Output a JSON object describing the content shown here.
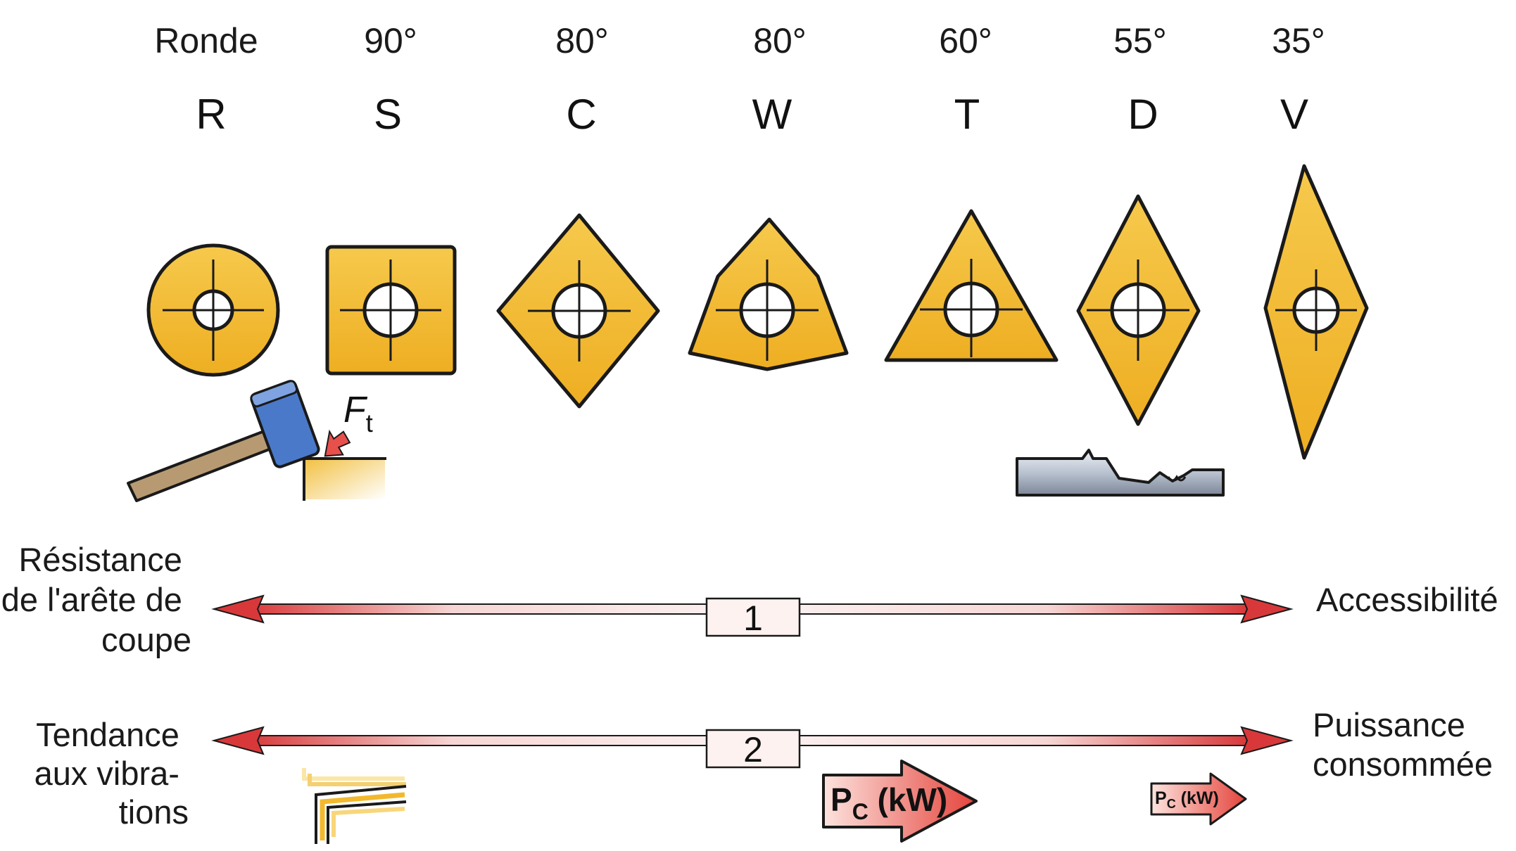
{
  "colors": {
    "insert_fill": "#f2b92e",
    "insert_light": "#f8d67a",
    "outline": "#1a1a1a",
    "arrow_red": "#d9383a",
    "hammer_blue": "#4a79c9",
    "pc_arrow": "#e8504c"
  },
  "inserts": [
    {
      "angle": "Ronde",
      "code": "R",
      "shape": "round"
    },
    {
      "angle": "90°",
      "code": "S",
      "shape": "square"
    },
    {
      "angle": "80°",
      "code": "C",
      "shape": "rhombic-80"
    },
    {
      "angle": "80°",
      "code": "W",
      "shape": "trigon-80"
    },
    {
      "angle": "60°",
      "code": "T",
      "shape": "triangle-60"
    },
    {
      "angle": "55°",
      "code": "D",
      "shape": "rhombic-55"
    },
    {
      "angle": "35°",
      "code": "V",
      "shape": "rhombic-35"
    }
  ],
  "icons": {
    "hammer": "hammer-strike-icon",
    "force_label_main": "F",
    "force_label_sub": "t",
    "workpiece": "turned-shaft-icon",
    "vibration": "chatter-lines-icon"
  },
  "scales": [
    {
      "number": "1",
      "left_label": [
        "Résistance",
        "de l'arête de",
        "coupe"
      ],
      "right_label": [
        "Accessibilité"
      ]
    },
    {
      "number": "2",
      "left_label": [
        "Tendance",
        "aux vibra-",
        "tions"
      ],
      "right_label": [
        "Puissance",
        "consommée"
      ]
    }
  ],
  "power_arrows": {
    "big": {
      "main": "P",
      "sub": "C",
      "unit": " (kW)"
    },
    "small": {
      "main": "P",
      "sub": "C",
      "unit": " (kW)"
    }
  }
}
